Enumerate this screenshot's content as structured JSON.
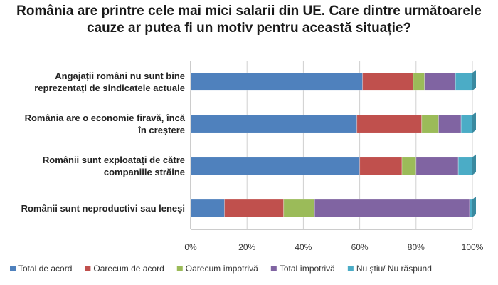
{
  "chart_data": {
    "type": "stacked_bar_horizontal",
    "title": "România are printre cele mai mici salarii din UE. Care dintre următoarele cauze ar putea fi un motiv pentru această situație?",
    "categories": [
      "Angajații români nu sunt bine reprezentați de sindicatele actuale",
      "România are o economie firavă, încă în creștere",
      "Românii sunt exploatați de către companiile străine",
      "Românii sunt neproductivi sau leneși"
    ],
    "series": [
      {
        "name": "Total de acord",
        "color": "#4f81bd",
        "values": [
          61,
          59,
          60,
          12
        ]
      },
      {
        "name": "Oarecum de acord",
        "color": "#c0504d",
        "values": [
          18,
          23,
          15,
          21
        ]
      },
      {
        "name": "Oarecum împotrivă",
        "color": "#9bbb59",
        "values": [
          4,
          6,
          5,
          11
        ]
      },
      {
        "name": "Total împotrivă",
        "color": "#8064a2",
        "values": [
          11,
          8,
          15,
          55
        ]
      },
      {
        "name": "Nu știu/ Nu răspund",
        "color": "#4bacc6",
        "values": [
          6,
          4,
          5,
          1
        ]
      }
    ],
    "xlim": [
      0,
      100
    ],
    "xticks": [
      {
        "value": 0,
        "label": "0%"
      },
      {
        "value": 20,
        "label": "20%"
      },
      {
        "value": 40,
        "label": "40%"
      },
      {
        "value": 60,
        "label": "60%"
      },
      {
        "value": 80,
        "label": "80%"
      },
      {
        "value": 100,
        "label": "100%"
      }
    ],
    "grid": true,
    "legend": "bottom"
  }
}
